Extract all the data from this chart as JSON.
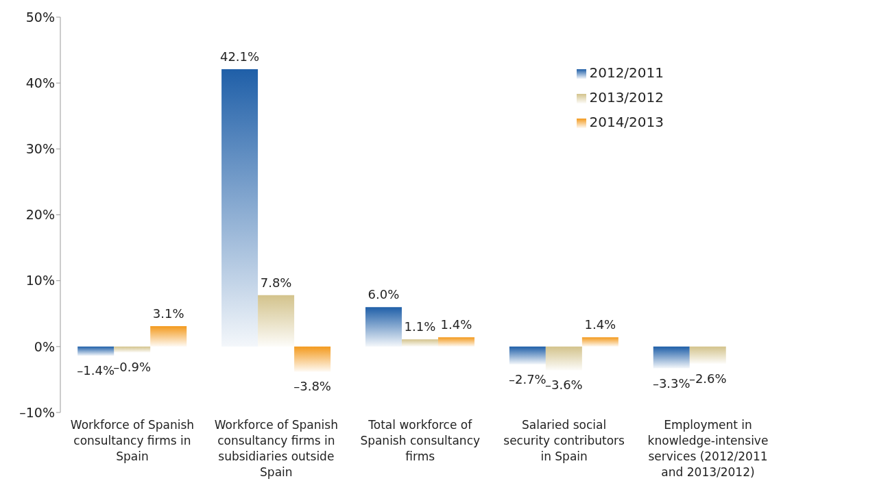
{
  "chart_data": {
    "type": "bar",
    "categories": [
      "Workforce of Spanish consultancy firms in Spain",
      "Workforce of Spanish consultancy firms in subsidiaries outside Spain",
      "Total workforce of Spanish consultancy firms",
      "Salaried social security contributors in Spain",
      "Employment in knowledge-intensive services (2012/2011 and 2013/2012)"
    ],
    "series": [
      {
        "name": "2012/2011",
        "color": "#1f5fa8",
        "values": [
          -1.4,
          42.1,
          6.0,
          -2.7,
          -3.3
        ],
        "value_labels": [
          "–1.4%",
          "42.1%",
          "6.0%",
          "–2.7%",
          "–3.3%"
        ]
      },
      {
        "name": "2013/2012",
        "color": "#d3c38c",
        "values": [
          -0.9,
          7.8,
          1.1,
          -3.6,
          -2.6
        ],
        "value_labels": [
          "–0.9%",
          "7.8%",
          "1.1%",
          "–3.6%",
          "–2.6%"
        ]
      },
      {
        "name": "2014/2013",
        "color": "#f39a1e",
        "values": [
          3.1,
          -3.8,
          1.4,
          1.4,
          null
        ],
        "value_labels": [
          "3.1%",
          "–3.8%",
          "1.4%",
          "1.4%",
          null
        ]
      }
    ],
    "ylim": [
      -10,
      50
    ],
    "yticks": [
      {
        "value": -10,
        "label": "–10%"
      },
      {
        "value": 0,
        "label": "0%"
      },
      {
        "value": 10,
        "label": "10%"
      },
      {
        "value": 20,
        "label": "20%"
      },
      {
        "value": 30,
        "label": "30%"
      },
      {
        "value": 40,
        "label": "40%"
      },
      {
        "value": 50,
        "label": "50%"
      }
    ],
    "grid": false,
    "legend": "top right"
  }
}
